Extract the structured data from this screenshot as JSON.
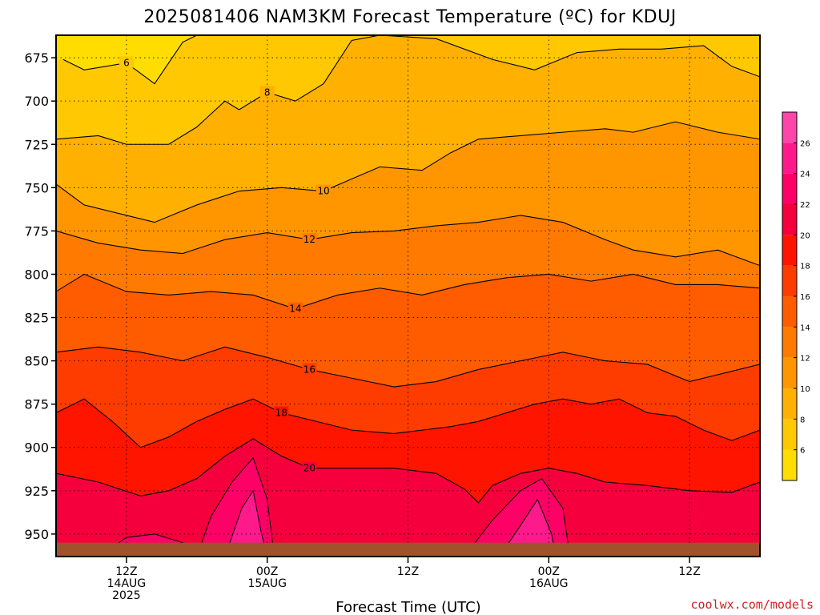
{
  "chart_data": {
    "type": "heatmap",
    "title": "2025081406 NAM3KM Forecast Temperature (ºC) for KDUJ",
    "xlabel": "Forecast Time (UTC)",
    "credit": "coolwx.com/models",
    "y_axis": {
      "inverted": true,
      "ylim": [
        963,
        662
      ],
      "ticks": [
        675,
        700,
        725,
        750,
        775,
        800,
        825,
        850,
        875,
        900,
        925,
        950
      ]
    },
    "x_axis": {
      "xlim": [
        7,
        57
      ],
      "ticks": [
        {
          "hour": 12,
          "lines": [
            "12Z",
            "14AUG",
            "2025"
          ]
        },
        {
          "hour": 22,
          "lines": [
            "00Z",
            "15AUG"
          ]
        },
        {
          "hour": 32,
          "lines": [
            "12Z"
          ]
        },
        {
          "hour": 42,
          "lines": [
            "00Z",
            "16AUG"
          ]
        },
        {
          "hour": 52,
          "lines": [
            "12Z"
          ]
        }
      ]
    },
    "grid": "dotted-horizontal-and-vertical",
    "colorbar": {
      "ticks": [
        6,
        8,
        10,
        12,
        14,
        16,
        18,
        20,
        22,
        24,
        26
      ],
      "bands": [
        {
          "min": 4,
          "max": 6,
          "color": "#ffdd00"
        },
        {
          "min": 6,
          "max": 8,
          "color": "#ffc800"
        },
        {
          "min": 8,
          "max": 10,
          "color": "#ffb000"
        },
        {
          "min": 10,
          "max": 12,
          "color": "#ff9600"
        },
        {
          "min": 12,
          "max": 14,
          "color": "#ff7a00"
        },
        {
          "min": 14,
          "max": 16,
          "color": "#ff5c00"
        },
        {
          "min": 16,
          "max": 18,
          "color": "#ff3c00"
        },
        {
          "min": 18,
          "max": 20,
          "color": "#ff1400"
        },
        {
          "min": 20,
          "max": 22,
          "color": "#f5003c"
        },
        {
          "min": 22,
          "max": 24,
          "color": "#ff0066"
        },
        {
          "min": 24,
          "max": 26,
          "color": "#ff1a8c"
        },
        {
          "min": 26,
          "max": 28,
          "color": "#ff44aa"
        }
      ]
    },
    "ground_color": "#a0522d",
    "isotherms": [
      {
        "label": "6",
        "points": [
          [
            7.5,
            676
          ],
          [
            9,
            682
          ],
          [
            12,
            678
          ],
          [
            14,
            690
          ],
          [
            16,
            666
          ],
          [
            17,
            662
          ]
        ]
      },
      {
        "label": "8",
        "points": [
          [
            7,
            722
          ],
          [
            10,
            720
          ],
          [
            12,
            725
          ],
          [
            15,
            725
          ],
          [
            17,
            715
          ],
          [
            19,
            700
          ],
          [
            20,
            705
          ],
          [
            22,
            695
          ],
          [
            24,
            700
          ],
          [
            26,
            690
          ],
          [
            28,
            665
          ],
          [
            30,
            662
          ],
          [
            34,
            664
          ],
          [
            38,
            676
          ],
          [
            41,
            682
          ],
          [
            44,
            672
          ],
          [
            47,
            670
          ],
          [
            50,
            670
          ],
          [
            53,
            668
          ],
          [
            55,
            680
          ],
          [
            57,
            686
          ]
        ]
      },
      {
        "label": "10",
        "points": [
          [
            7,
            748
          ],
          [
            9,
            760
          ],
          [
            12,
            766
          ],
          [
            14,
            770
          ],
          [
            17,
            760
          ],
          [
            20,
            752
          ],
          [
            23,
            750
          ],
          [
            26,
            752
          ],
          [
            28,
            745
          ],
          [
            30,
            738
          ],
          [
            33,
            740
          ],
          [
            35,
            730
          ],
          [
            37,
            722
          ],
          [
            40,
            720
          ],
          [
            43,
            718
          ],
          [
            46,
            716
          ],
          [
            48,
            718
          ],
          [
            51,
            712
          ],
          [
            54,
            718
          ],
          [
            57,
            722
          ]
        ]
      },
      {
        "label": "12",
        "points": [
          [
            7,
            775
          ],
          [
            10,
            782
          ],
          [
            13,
            786
          ],
          [
            16,
            788
          ],
          [
            19,
            780
          ],
          [
            22,
            776
          ],
          [
            25,
            780
          ],
          [
            28,
            776
          ],
          [
            31,
            775
          ],
          [
            34,
            772
          ],
          [
            37,
            770
          ],
          [
            40,
            766
          ],
          [
            43,
            770
          ],
          [
            46,
            780
          ],
          [
            48,
            786
          ],
          [
            51,
            790
          ],
          [
            54,
            786
          ],
          [
            57,
            795
          ]
        ]
      },
      {
        "label": "14",
        "points": [
          [
            7,
            810
          ],
          [
            9,
            800
          ],
          [
            12,
            810
          ],
          [
            15,
            812
          ],
          [
            18,
            810
          ],
          [
            21,
            812
          ],
          [
            24,
            820
          ],
          [
            27,
            812
          ],
          [
            30,
            808
          ],
          [
            33,
            812
          ],
          [
            36,
            806
          ],
          [
            39,
            802
          ],
          [
            42,
            800
          ],
          [
            45,
            804
          ],
          [
            48,
            800
          ],
          [
            51,
            806
          ],
          [
            54,
            806
          ],
          [
            57,
            808
          ]
        ]
      },
      {
        "label": "16",
        "points": [
          [
            7,
            845
          ],
          [
            10,
            842
          ],
          [
            13,
            845
          ],
          [
            16,
            850
          ],
          [
            19,
            842
          ],
          [
            22,
            848
          ],
          [
            25,
            855
          ],
          [
            28,
            860
          ],
          [
            31,
            865
          ],
          [
            34,
            862
          ],
          [
            37,
            855
          ],
          [
            40,
            850
          ],
          [
            43,
            845
          ],
          [
            46,
            850
          ],
          [
            49,
            852
          ],
          [
            52,
            862
          ],
          [
            54,
            858
          ],
          [
            57,
            852
          ]
        ]
      },
      {
        "label": "18",
        "points": [
          [
            7,
            880
          ],
          [
            9,
            872
          ],
          [
            11,
            885
          ],
          [
            13,
            900
          ],
          [
            15,
            894
          ],
          [
            17,
            885
          ],
          [
            19,
            878
          ],
          [
            21,
            872
          ],
          [
            23,
            880
          ],
          [
            25,
            884
          ],
          [
            28,
            890
          ],
          [
            31,
            892
          ],
          [
            33,
            890
          ],
          [
            35,
            888
          ],
          [
            37,
            885
          ],
          [
            39,
            880
          ],
          [
            41,
            875
          ],
          [
            43,
            872
          ],
          [
            45,
            875
          ],
          [
            47,
            872
          ],
          [
            49,
            880
          ],
          [
            51,
            882
          ],
          [
            53,
            890
          ],
          [
            55,
            896
          ],
          [
            57,
            890
          ]
        ]
      },
      {
        "label": "20",
        "points": [
          [
            7,
            915
          ],
          [
            10,
            920
          ],
          [
            13,
            928
          ],
          [
            15,
            925
          ],
          [
            17,
            918
          ],
          [
            19,
            905
          ],
          [
            21,
            895
          ],
          [
            23,
            905
          ],
          [
            25,
            912
          ],
          [
            28,
            912
          ],
          [
            31,
            912
          ],
          [
            34,
            915
          ],
          [
            36,
            924
          ],
          [
            37,
            932
          ],
          [
            38,
            922
          ],
          [
            40,
            915
          ],
          [
            42,
            912
          ],
          [
            44,
            915
          ],
          [
            46,
            920
          ],
          [
            49,
            922
          ],
          [
            52,
            925
          ],
          [
            55,
            926
          ],
          [
            57,
            920
          ]
        ]
      }
    ]
  }
}
